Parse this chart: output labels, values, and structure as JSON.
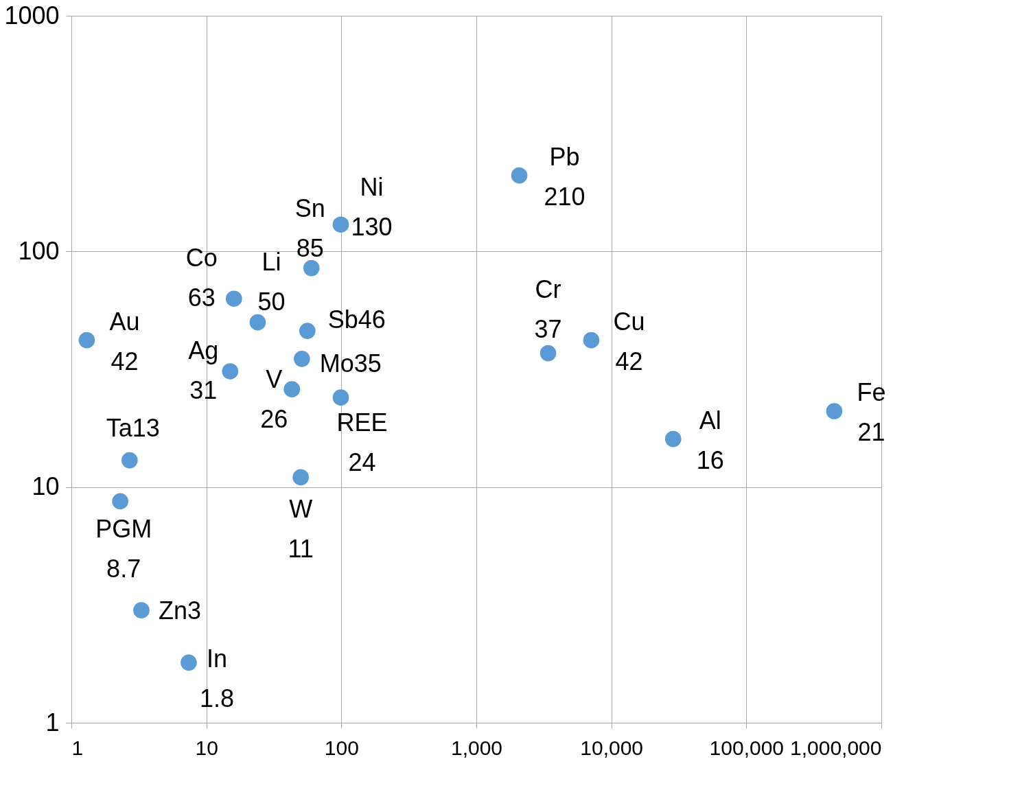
{
  "chart_data": {
    "type": "scatter",
    "log": "xy",
    "grid": true,
    "marker": "circle",
    "xlim": [
      1,
      1000000
    ],
    "ylim": [
      1,
      1000
    ],
    "xticks": [
      1,
      10,
      100,
      {
        "value": 1000,
        "label": "1,000"
      },
      {
        "value": 10000,
        "label": "10,000"
      },
      {
        "value": 100000,
        "label": "100,000"
      },
      {
        "value": 1000000,
        "label": "1,000,000"
      }
    ],
    "yticks": [
      1,
      10,
      100,
      1000
    ],
    "series": [
      {
        "color": "#5b9bd5",
        "x": [
          1.3,
          2.7,
          2.3,
          3.3,
          7.4,
          16,
          15,
          24,
          43,
          50,
          51,
          56,
          60,
          99,
          99,
          2080,
          3400,
          7100,
          28700,
          448000
        ],
        "values": [
          42,
          13,
          8.7,
          3,
          1.8,
          63,
          31,
          50,
          26,
          11,
          35,
          46,
          85,
          130,
          24,
          210,
          37,
          42,
          16,
          21
        ],
        "value_labels": [
          "Au 42",
          "Ta13",
          "PGM 8.7",
          "Zn3",
          "In 1.8",
          "Co 63",
          "Ag 31",
          "Li 50",
          "V 26",
          "W 11",
          "Mo35",
          "Sb46",
          "Sn 85",
          "Ni 130",
          "REE 24",
          "Pb 210",
          "Cr 37",
          "Cu 42",
          "Al 16",
          "Fe 21"
        ]
      }
    ]
  }
}
